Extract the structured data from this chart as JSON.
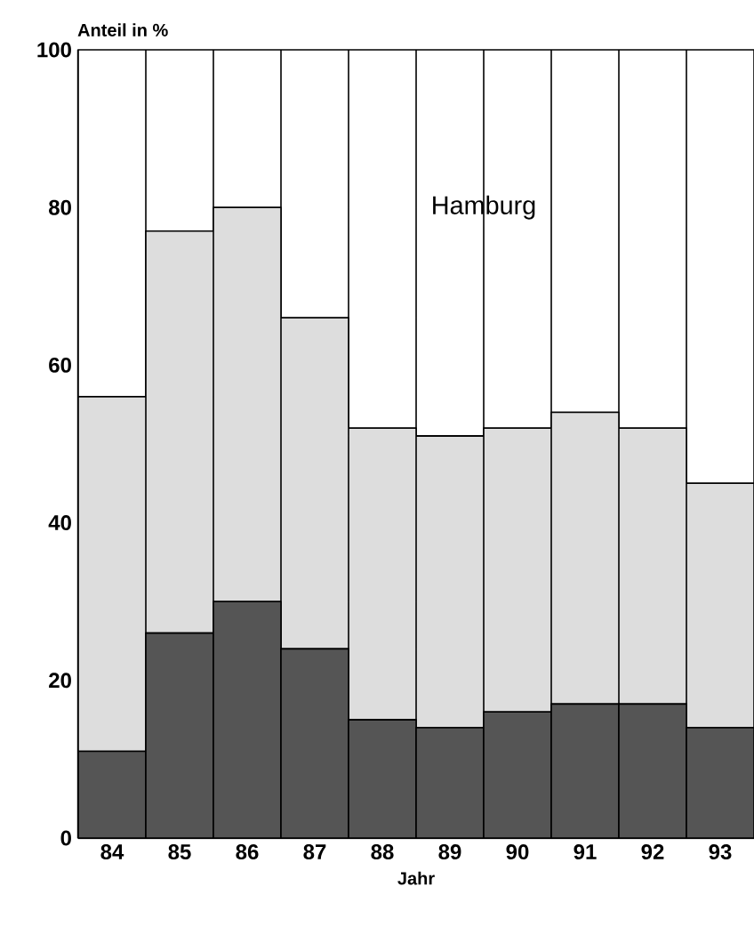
{
  "chart_data": {
    "type": "bar",
    "stacked": true,
    "ylabel": "Anteil in %",
    "xlabel": "Jahr",
    "categories": [
      "84",
      "85",
      "86",
      "87",
      "88",
      "89",
      "90",
      "91",
      "92",
      "93"
    ],
    "series": [
      {
        "color": "#555555",
        "values": [
          11,
          26,
          30,
          24,
          15,
          14,
          16,
          17,
          17,
          14
        ]
      },
      {
        "color": "#dddddd",
        "values": [
          45,
          51,
          50,
          42,
          37,
          37,
          36,
          37,
          35,
          31
        ]
      },
      {
        "color": "#ffffff",
        "values": [
          44,
          23,
          20,
          34,
          48,
          49,
          48,
          46,
          48,
          55
        ]
      }
    ],
    "ylim": [
      0,
      100
    ],
    "yticks": [
      0,
      20,
      40,
      60,
      80,
      100
    ],
    "annotations": [
      "Hamburg"
    ]
  }
}
